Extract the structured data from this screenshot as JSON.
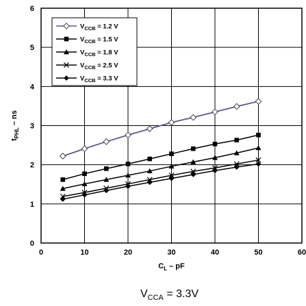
{
  "chart_data": {
    "type": "line",
    "xlabel": "C",
    "xlabel_sub": "L",
    "xlabel_suffix": " – pF",
    "ylabel": "t",
    "ylabel_sub": "PHL",
    "ylabel_suffix": " – ns",
    "condition": "V",
    "condition_sub": "CCA",
    "condition_suffix": " = 3.3V",
    "xlim": [
      0,
      60
    ],
    "ylim": [
      0,
      6
    ],
    "xticks": [
      "0",
      "10",
      "20",
      "30",
      "40",
      "50",
      "60"
    ],
    "yticks": [
      "0",
      "1",
      "2",
      "3",
      "4",
      "5",
      "6"
    ],
    "grid": true,
    "legend_position": "top-left",
    "x": [
      5,
      10,
      15,
      20,
      25,
      30,
      35,
      40,
      45,
      50
    ],
    "series": [
      {
        "name": "V_CCB = 1.2 V",
        "name_main": "V",
        "name_sub": "CCB",
        "name_suffix": " = 1.2 V",
        "marker": "diamond-open",
        "color": "#5a5a8a",
        "values": [
          2.22,
          2.41,
          2.59,
          2.76,
          2.92,
          3.08,
          3.21,
          3.35,
          3.49,
          3.62
        ]
      },
      {
        "name": "V_CCB = 1.5 V",
        "name_main": "V",
        "name_sub": "CCB",
        "name_suffix": " = 1.5 V",
        "marker": "square",
        "color": "#000000",
        "values": [
          1.62,
          1.77,
          1.9,
          2.02,
          2.15,
          2.28,
          2.41,
          2.53,
          2.63,
          2.76
        ]
      },
      {
        "name": "V_CCB = 1.8 V",
        "name_main": "V",
        "name_sub": "CCB",
        "name_suffix": " = 1.8 V",
        "marker": "triangle",
        "color": "#000000",
        "values": [
          1.39,
          1.51,
          1.62,
          1.73,
          1.84,
          1.96,
          2.07,
          2.18,
          2.3,
          2.43
        ]
      },
      {
        "name": "V_CCB = 2.5 V",
        "name_main": "V",
        "name_sub": "CCB",
        "name_suffix": " = 2.5 V",
        "marker": "x",
        "color": "#000000",
        "values": [
          1.19,
          1.29,
          1.4,
          1.51,
          1.62,
          1.73,
          1.83,
          1.92,
          2.02,
          2.12
        ]
      },
      {
        "name": "V_CCB = 3.3 V",
        "name_main": "V",
        "name_sub": "CCB",
        "name_suffix": " = 3.3 V",
        "marker": "diamond",
        "color": "#000000",
        "values": [
          1.12,
          1.23,
          1.34,
          1.45,
          1.55,
          1.65,
          1.75,
          1.85,
          1.94,
          2.02
        ]
      }
    ]
  }
}
